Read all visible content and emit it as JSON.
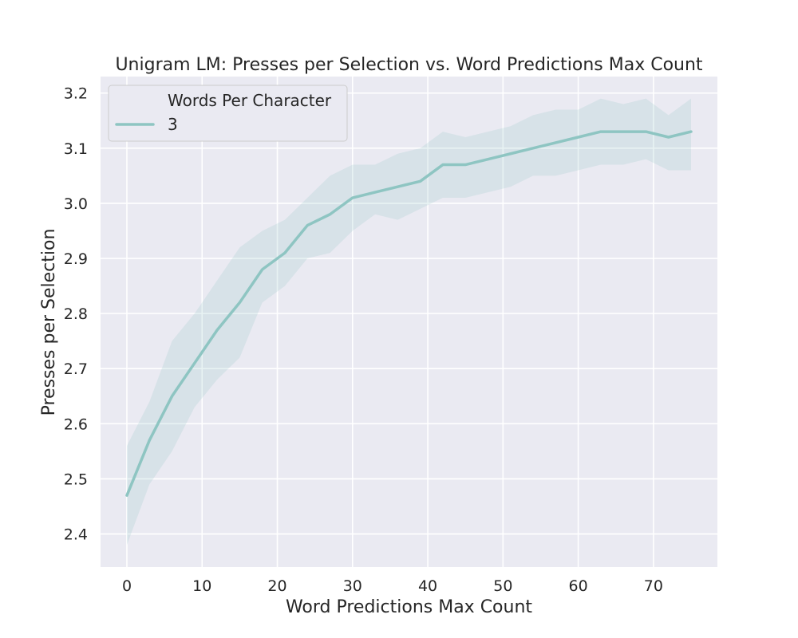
{
  "chart_data": {
    "type": "line",
    "title": "Unigram LM: Presses per Selection vs. Word Predictions Max Count",
    "xlabel": "Word Predictions Max Count",
    "ylabel": "Presses per Selection",
    "xlim": [
      -3.5,
      78.5
    ],
    "ylim": [
      2.34,
      3.23
    ],
    "xticks": [
      0,
      10,
      20,
      30,
      40,
      50,
      60,
      70
    ],
    "yticks": [
      2.4,
      2.5,
      2.6,
      2.7,
      2.8,
      2.9,
      3.0,
      3.1,
      3.2
    ],
    "xtick_labels": [
      "0",
      "10",
      "20",
      "30",
      "40",
      "50",
      "60",
      "70"
    ],
    "ytick_labels": [
      "2.4",
      "2.5",
      "2.6",
      "2.7",
      "2.8",
      "2.9",
      "3.0",
      "3.1",
      "3.2"
    ],
    "grid": true,
    "legend": {
      "title": "Words Per Character",
      "placement": "top-left"
    },
    "x": [
      0,
      3,
      6,
      9,
      12,
      15,
      18,
      21,
      24,
      27,
      30,
      33,
      36,
      39,
      42,
      45,
      48,
      51,
      54,
      57,
      60,
      63,
      66,
      69,
      72,
      75
    ],
    "series": [
      {
        "name": "3",
        "color": "#8ec5c2",
        "values": [
          2.47,
          2.57,
          2.65,
          2.71,
          2.77,
          2.82,
          2.88,
          2.91,
          2.96,
          2.98,
          3.01,
          3.02,
          3.03,
          3.04,
          3.07,
          3.07,
          3.08,
          3.09,
          3.1,
          3.11,
          3.12,
          3.13,
          3.13,
          3.13,
          3.12,
          3.13
        ],
        "ci_upper": [
          2.56,
          2.64,
          2.75,
          2.8,
          2.86,
          2.92,
          2.95,
          2.97,
          3.01,
          3.05,
          3.07,
          3.07,
          3.09,
          3.1,
          3.13,
          3.12,
          3.13,
          3.14,
          3.16,
          3.17,
          3.17,
          3.19,
          3.18,
          3.19,
          3.16,
          3.19
        ],
        "ci_lower": [
          2.38,
          2.49,
          2.55,
          2.63,
          2.68,
          2.72,
          2.82,
          2.85,
          2.9,
          2.91,
          2.95,
          2.98,
          2.97,
          2.99,
          3.01,
          3.01,
          3.02,
          3.03,
          3.05,
          3.05,
          3.06,
          3.07,
          3.07,
          3.08,
          3.06,
          3.06
        ]
      }
    ]
  },
  "colors": {
    "plot_background": "#eaeaf2",
    "grid": "#ffffff",
    "band_alpha": 0.2
  }
}
